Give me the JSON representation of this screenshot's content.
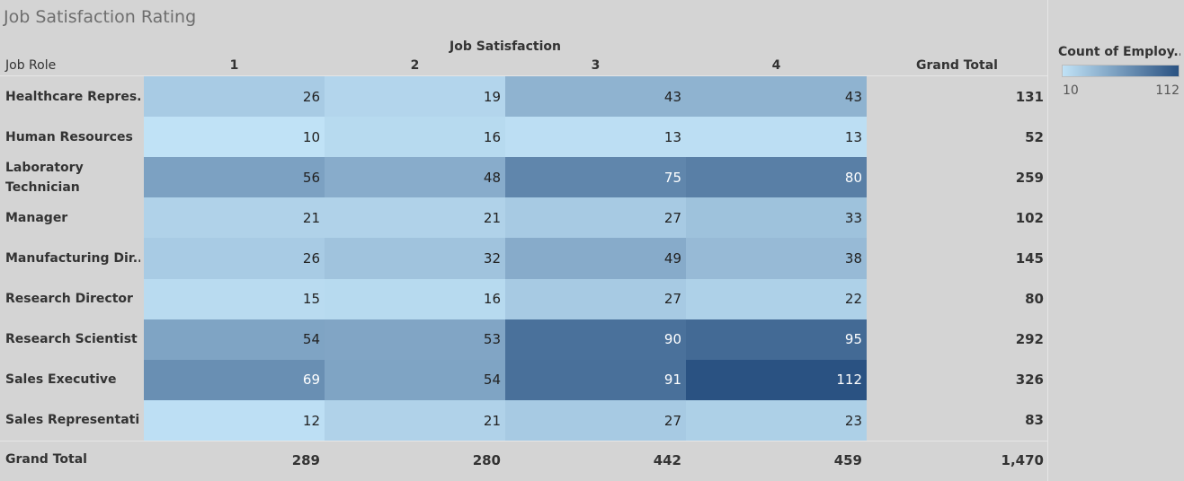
{
  "title": "Job Satisfaction Rating",
  "header": {
    "column_group": "Job Satisfaction",
    "row_header": "Job Role",
    "grand_total_col": "Grand Total",
    "grand_total_row": "Grand Total"
  },
  "legend": {
    "title": "Count of Employ..",
    "min_label": "10",
    "max_label": "112",
    "color_min": "#c0e2f6",
    "color_max": "#2a5282"
  },
  "chart_data": {
    "type": "heatmap",
    "title": "Job Satisfaction Rating",
    "x_title": "Job Satisfaction",
    "y_title": "Job Role",
    "columns": [
      "1",
      "2",
      "3",
      "4"
    ],
    "rows": [
      {
        "label": "Healthcare Repres..",
        "values": [
          "26",
          "19",
          "43",
          "43"
        ],
        "total": "131"
      },
      {
        "label": "Human Resources",
        "values": [
          "10",
          "16",
          "13",
          "13"
        ],
        "total": "52"
      },
      {
        "label": "Laboratory Technician",
        "values": [
          "56",
          "48",
          "75",
          "80"
        ],
        "total": "259"
      },
      {
        "label": "Manager",
        "values": [
          "21",
          "21",
          "27",
          "33"
        ],
        "total": "102"
      },
      {
        "label": "Manufacturing Dir..",
        "values": [
          "26",
          "32",
          "49",
          "38"
        ],
        "total": "145"
      },
      {
        "label": "Research Director",
        "values": [
          "15",
          "16",
          "27",
          "22"
        ],
        "total": "80"
      },
      {
        "label": "Research Scientist",
        "values": [
          "54",
          "53",
          "90",
          "95"
        ],
        "total": "292"
      },
      {
        "label": "Sales Executive",
        "values": [
          "69",
          "54",
          "91",
          "112"
        ],
        "total": "326"
      },
      {
        "label": "Sales Representati..",
        "values": [
          "12",
          "21",
          "27",
          "23"
        ],
        "total": "83"
      }
    ],
    "column_totals": [
      "289",
      "280",
      "442",
      "459"
    ],
    "grand_total": "1,470",
    "color_range": [
      10,
      112
    ]
  }
}
